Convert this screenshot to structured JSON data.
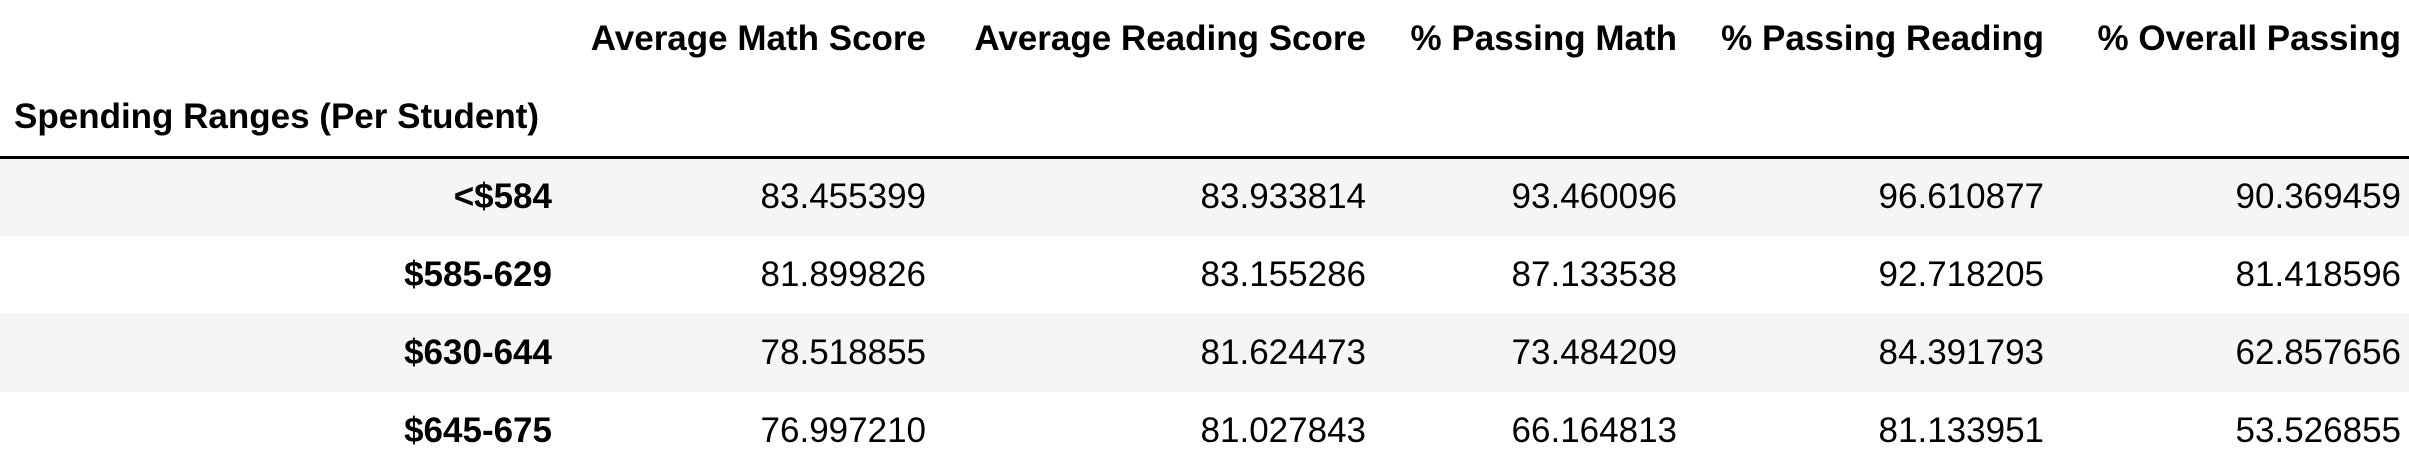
{
  "table": {
    "index_name": "Spending Ranges (Per Student)",
    "columns": [
      "Average Math Score",
      "Average Reading Score",
      "% Passing Math",
      "% Passing Reading",
      "% Overall Passing"
    ],
    "rows": [
      {
        "index": "<$584",
        "cells": [
          "83.455399",
          "83.933814",
          "93.460096",
          "96.610877",
          "90.369459"
        ]
      },
      {
        "index": "$585-629",
        "cells": [
          "81.899826",
          "83.155286",
          "87.133538",
          "92.718205",
          "81.418596"
        ]
      },
      {
        "index": "$630-644",
        "cells": [
          "78.518855",
          "81.624473",
          "73.484209",
          "84.391793",
          "62.857656"
        ]
      },
      {
        "index": "$645-675",
        "cells": [
          "76.997210",
          "81.027843",
          "66.164813",
          "81.133951",
          "53.526855"
        ]
      }
    ]
  }
}
